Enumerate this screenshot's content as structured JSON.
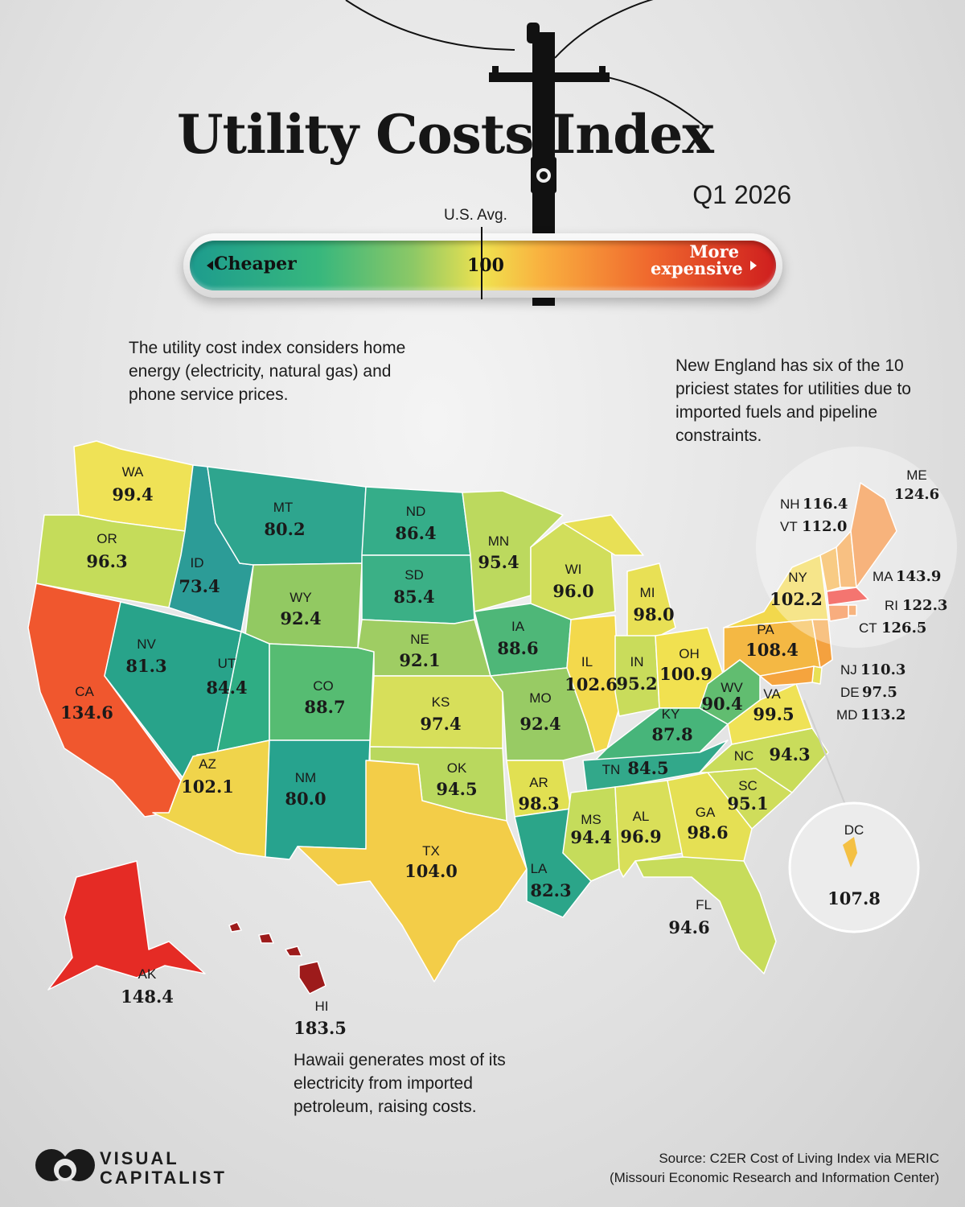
{
  "header": {
    "title": "Utility Costs Index",
    "subtitle": "Q1 2026"
  },
  "scale": {
    "avg_label": "U.S. Avg.",
    "avg_value": "100",
    "left_label": "Cheaper",
    "right_label": "More expensive"
  },
  "notes": {
    "left": "The utility cost index considers home energy (electricity, natural gas) and phone service prices.",
    "new_england": "New England has six of the 10 priciest states for utilities due to imported fuels and pipeline constraints.",
    "hawaii": "Hawaii generates most of its electricity from imported petroleum, raising costs."
  },
  "source": {
    "line1": "Source: C2ER Cost of Living Index via MERIC",
    "line2": "(Missouri Economic Research and Information Center)"
  },
  "brand": {
    "line1": "VISUAL",
    "line2": "CAPITALIST"
  },
  "color_scale": {
    "low": "#1d9c8e",
    "mid": "#f0e24f",
    "high": "#cf1e1e"
  },
  "states": {
    "WA": {
      "abbr": "WA",
      "value": "99.4"
    },
    "OR": {
      "abbr": "OR",
      "value": "96.3"
    },
    "CA": {
      "abbr": "CA",
      "value": "134.6"
    },
    "ID": {
      "abbr": "ID",
      "value": "73.4"
    },
    "NV": {
      "abbr": "NV",
      "value": "81.3"
    },
    "MT": {
      "abbr": "MT",
      "value": "80.2"
    },
    "WY": {
      "abbr": "WY",
      "value": "92.4"
    },
    "UT": {
      "abbr": "UT",
      "value": "84.4"
    },
    "AZ": {
      "abbr": "AZ",
      "value": "102.1"
    },
    "CO": {
      "abbr": "CO",
      "value": "88.7"
    },
    "NM": {
      "abbr": "NM",
      "value": "80.0"
    },
    "ND": {
      "abbr": "ND",
      "value": "86.4"
    },
    "SD": {
      "abbr": "SD",
      "value": "85.4"
    },
    "NE": {
      "abbr": "NE",
      "value": "92.1"
    },
    "KS": {
      "abbr": "KS",
      "value": "97.4"
    },
    "OK": {
      "abbr": "OK",
      "value": "94.5"
    },
    "TX": {
      "abbr": "TX",
      "value": "104.0"
    },
    "MN": {
      "abbr": "MN",
      "value": "95.4"
    },
    "IA": {
      "abbr": "IA",
      "value": "88.6"
    },
    "MO": {
      "abbr": "MO",
      "value": "92.4"
    },
    "AR": {
      "abbr": "AR",
      "value": "98.3"
    },
    "LA": {
      "abbr": "LA",
      "value": "82.3"
    },
    "WI": {
      "abbr": "WI",
      "value": "96.0"
    },
    "IL": {
      "abbr": "IL",
      "value": "102.6"
    },
    "MI": {
      "abbr": "MI",
      "value": "98.0"
    },
    "IN": {
      "abbr": "IN",
      "value": "95.2"
    },
    "OH": {
      "abbr": "OH",
      "value": "100.9"
    },
    "KY": {
      "abbr": "KY",
      "value": "87.8"
    },
    "TN": {
      "abbr": "TN",
      "value": "84.5"
    },
    "MS": {
      "abbr": "MS",
      "value": "94.4"
    },
    "AL": {
      "abbr": "AL",
      "value": "96.9"
    },
    "GA": {
      "abbr": "GA",
      "value": "98.6"
    },
    "FL": {
      "abbr": "FL",
      "value": "94.6"
    },
    "SC": {
      "abbr": "SC",
      "value": "95.1"
    },
    "NC": {
      "abbr": "NC",
      "value": "94.3"
    },
    "VA": {
      "abbr": "VA",
      "value": "99.5"
    },
    "WV": {
      "abbr": "WV",
      "value": "90.4"
    },
    "PA": {
      "abbr": "PA",
      "value": "108.4"
    },
    "NY": {
      "abbr": "NY",
      "value": "102.2"
    },
    "NJ": {
      "abbr": "NJ",
      "value": "110.3"
    },
    "DE": {
      "abbr": "DE",
      "value": "97.5"
    },
    "MD": {
      "abbr": "MD",
      "value": "113.2"
    },
    "DC": {
      "abbr": "DC",
      "value": "107.8"
    },
    "ME": {
      "abbr": "ME",
      "value": "124.6"
    },
    "NH": {
      "abbr": "NH",
      "value": "116.4"
    },
    "VT": {
      "abbr": "VT",
      "value": "112.0"
    },
    "MA": {
      "abbr": "MA",
      "value": "143.9"
    },
    "RI": {
      "abbr": "RI",
      "value": "122.3"
    },
    "CT": {
      "abbr": "CT",
      "value": "126.5"
    },
    "AK": {
      "abbr": "AK",
      "value": "148.4"
    },
    "HI": {
      "abbr": "HI",
      "value": "183.5"
    }
  }
}
